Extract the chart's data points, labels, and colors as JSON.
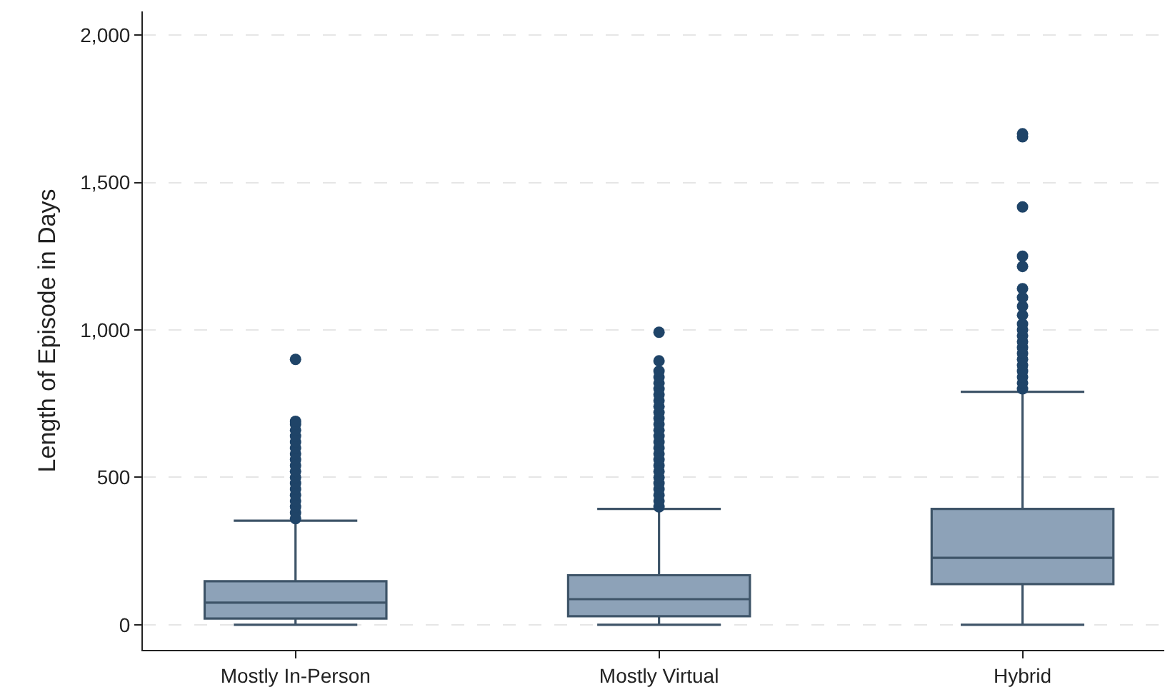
{
  "chart_data": {
    "type": "box",
    "ylabel": "Length of Episode in Days",
    "categories": [
      "Mostly In-Person",
      "Mostly Virtual",
      "Hybrid"
    ],
    "series": [
      {
        "color": "#8da2b8",
        "boxes": [
          {
            "low": 0,
            "q1": 21,
            "median": 75,
            "q3": 148,
            "high": 353,
            "outliers": [
              360,
              380,
              400,
              420,
              440,
              460,
              480,
              500,
              520,
              540,
              560,
              580,
              600,
              620,
              640,
              660,
              680,
              690,
              900
            ]
          },
          {
            "low": 0,
            "q1": 29,
            "median": 87,
            "q3": 168,
            "high": 393,
            "outliers": [
              400,
              420,
              440,
              460,
              480,
              500,
              520,
              540,
              560,
              580,
              600,
              620,
              640,
              660,
              680,
              700,
              720,
              740,
              760,
              780,
              800,
              820,
              840,
              860,
              895,
              992
            ]
          },
          {
            "low": 0,
            "q1": 138,
            "median": 227,
            "q3": 393,
            "high": 790,
            "outliers": [
              800,
              820,
              840,
              860,
              880,
              900,
              920,
              940,
              960,
              980,
              1000,
              1020,
              1050,
              1080,
              1110,
              1140,
              1215,
              1250,
              1417,
              1655,
              1665
            ]
          }
        ]
      }
    ],
    "ylim": [
      -85,
      2080
    ],
    "yticks": [
      0,
      500,
      {
        "value": 1000,
        "label": "1,000"
      },
      {
        "value": 1500,
        "label": "1,500"
      },
      {
        "value": 2000,
        "label": "2,000"
      }
    ],
    "grid": "y",
    "marker": "circle"
  }
}
